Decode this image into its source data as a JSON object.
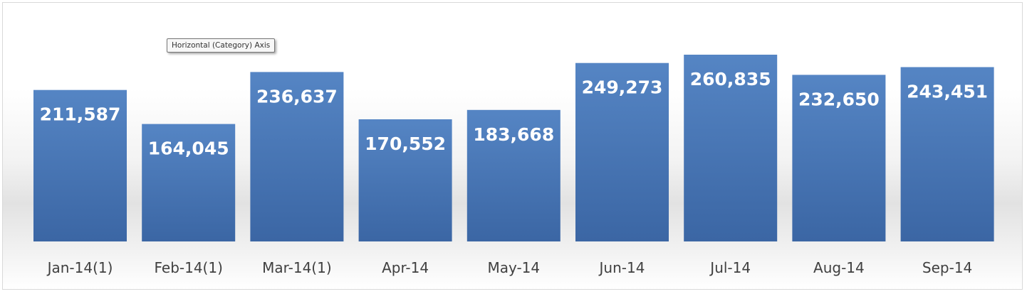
{
  "chart_data": {
    "type": "bar",
    "categories": [
      "Jan-14(1)",
      "Feb-14(1)",
      "Mar-14(1)",
      "Apr-14",
      "May-14",
      "Jun-14",
      "Jul-14",
      "Aug-14",
      "Sep-14"
    ],
    "values": [
      211587,
      164045,
      236637,
      170552,
      183668,
      249273,
      260835,
      232650,
      243451
    ],
    "data_labels": [
      "211,587",
      "164,045",
      "236,637",
      "170,552",
      "183,668",
      "249,273",
      "260,835",
      "232,650",
      "243,451"
    ],
    "title": "",
    "xlabel": "",
    "ylabel": "",
    "ylim": [
      0,
      275000
    ],
    "grid": false,
    "legend": "none",
    "bar_color_top": "#5585c4",
    "bar_color_bottom": "#3b66a4"
  },
  "tooltip": {
    "text": "Horizontal (Category) Axis"
  }
}
